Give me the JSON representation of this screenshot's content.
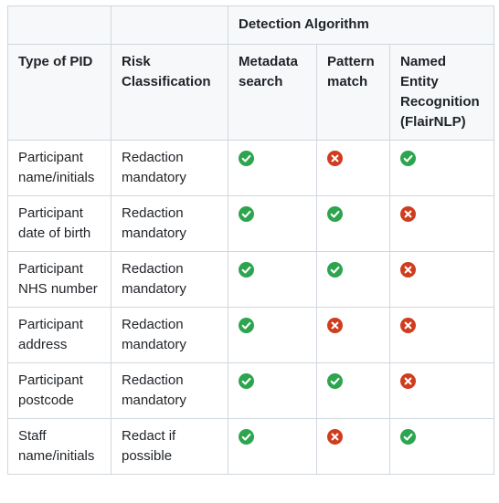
{
  "table": {
    "group_header": "Detection Algorithm",
    "columns": {
      "type": "Type of PID",
      "risk": "Risk Classification",
      "metadata": "Metadata search",
      "pattern": "Pattern match",
      "ner": "Named Entity Recognition (FlairNLP)"
    },
    "rows": [
      {
        "type": "Participant name/initials",
        "risk": "Redaction mandatory",
        "metadata": "check",
        "pattern": "cross",
        "ner": "check"
      },
      {
        "type": "Participant date of birth",
        "risk": "Redaction mandatory",
        "metadata": "check",
        "pattern": "check",
        "ner": "cross"
      },
      {
        "type": "Participant NHS number",
        "risk": "Redaction mandatory",
        "metadata": "check",
        "pattern": "check",
        "ner": "cross"
      },
      {
        "type": "Participant address",
        "risk": "Redaction mandatory",
        "metadata": "check",
        "pattern": "cross",
        "ner": "cross"
      },
      {
        "type": "Participant postcode",
        "risk": "Redaction mandatory",
        "metadata": "check",
        "pattern": "check",
        "ner": "cross"
      },
      {
        "type": "Staff name/initials",
        "risk": "Redact if possible",
        "metadata": "check",
        "pattern": "cross",
        "ner": "check"
      }
    ]
  },
  "colors": {
    "check": "#2da44e",
    "cross": "#cf3d1e",
    "border": "#d0d7de",
    "header_bg": "#f6f8fa"
  },
  "icons": {
    "check": "check-circle-icon",
    "cross": "cross-circle-icon"
  }
}
